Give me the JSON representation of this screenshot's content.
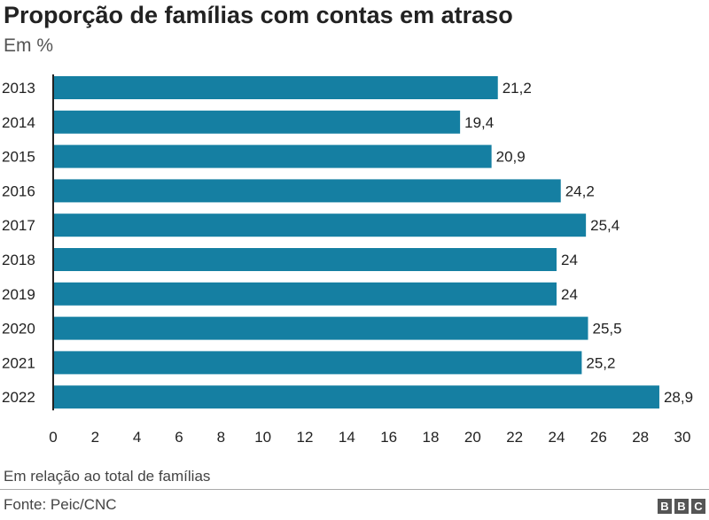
{
  "header": {
    "title": "Proporção de famílias com contas em atraso",
    "subtitle": "Em %"
  },
  "footer": {
    "note": "Em relação ao total de famílias",
    "source": "Fonte: Peic/CNC",
    "logo_letters": [
      "B",
      "B",
      "C"
    ]
  },
  "colors": {
    "bar": "#157fa2",
    "axis": "#222222"
  },
  "chart_data": {
    "type": "bar",
    "orientation": "horizontal",
    "title": "Proporção de famílias com contas em atraso",
    "subtitle": "Em %",
    "categories": [
      "2013",
      "2014",
      "2015",
      "2016",
      "2017",
      "2018",
      "2019",
      "2020",
      "2021",
      "2022"
    ],
    "values": [
      21.2,
      19.4,
      20.9,
      24.2,
      25.4,
      24,
      24,
      25.5,
      25.2,
      28.9
    ],
    "value_labels": [
      "21,2",
      "19,4",
      "20,9",
      "24,2",
      "25,4",
      "24",
      "24",
      "25,5",
      "25,2",
      "28,9"
    ],
    "xlim": [
      0,
      30
    ],
    "xticks": [
      0,
      2,
      4,
      6,
      8,
      10,
      12,
      14,
      16,
      18,
      20,
      22,
      24,
      26,
      28,
      30
    ],
    "grid": false,
    "legend": "none"
  }
}
